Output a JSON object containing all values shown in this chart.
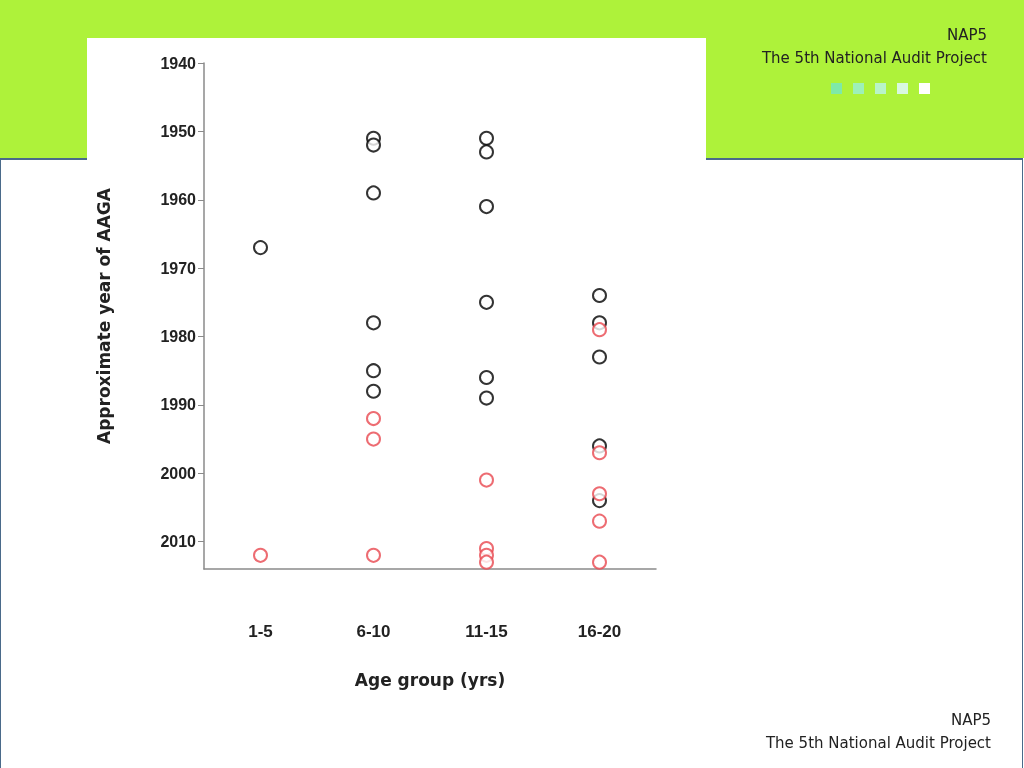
{
  "chart_data": {
    "type": "scatter",
    "xlabel": "Age group (yrs)",
    "ylabel": "Approximate year of AAGA",
    "categories": [
      "1-5",
      "6-10",
      "11-15",
      "16-20"
    ],
    "ylim": [
      2014,
      1940
    ],
    "yticks": [
      1940,
      1950,
      1960,
      1970,
      1980,
      1990,
      2000,
      2010
    ],
    "marker": "circle",
    "grid": false,
    "series": [
      {
        "color": "#000000",
        "x": [
          "1-5",
          "6-10",
          "6-10",
          "6-10",
          "6-10",
          "6-10",
          "6-10",
          "11-15",
          "11-15",
          "11-15",
          "11-15",
          "11-15",
          "11-15",
          "16-20",
          "16-20",
          "16-20",
          "16-20",
          "16-20"
        ],
        "values": [
          1967,
          1951,
          1952,
          1959,
          1978,
          1985,
          1988,
          1951,
          1953,
          1961,
          1975,
          1986,
          1989,
          1974,
          1978,
          1983,
          1996,
          2004
        ]
      },
      {
        "color": "#e8474f",
        "x": [
          "1-5",
          "6-10",
          "6-10",
          "6-10",
          "11-15",
          "11-15",
          "11-15",
          "11-15",
          "16-20",
          "16-20",
          "16-20",
          "16-20",
          "16-20"
        ],
        "values": [
          2012,
          1992,
          1995,
          2012,
          2001,
          2011,
          2012,
          2013,
          1979,
          1997,
          2003,
          2007,
          2013
        ]
      }
    ],
    "annotations": [
      "NAP5",
      "The 5th National Audit Project",
      "NAP5",
      "The 5th National Audit Project"
    ]
  }
}
